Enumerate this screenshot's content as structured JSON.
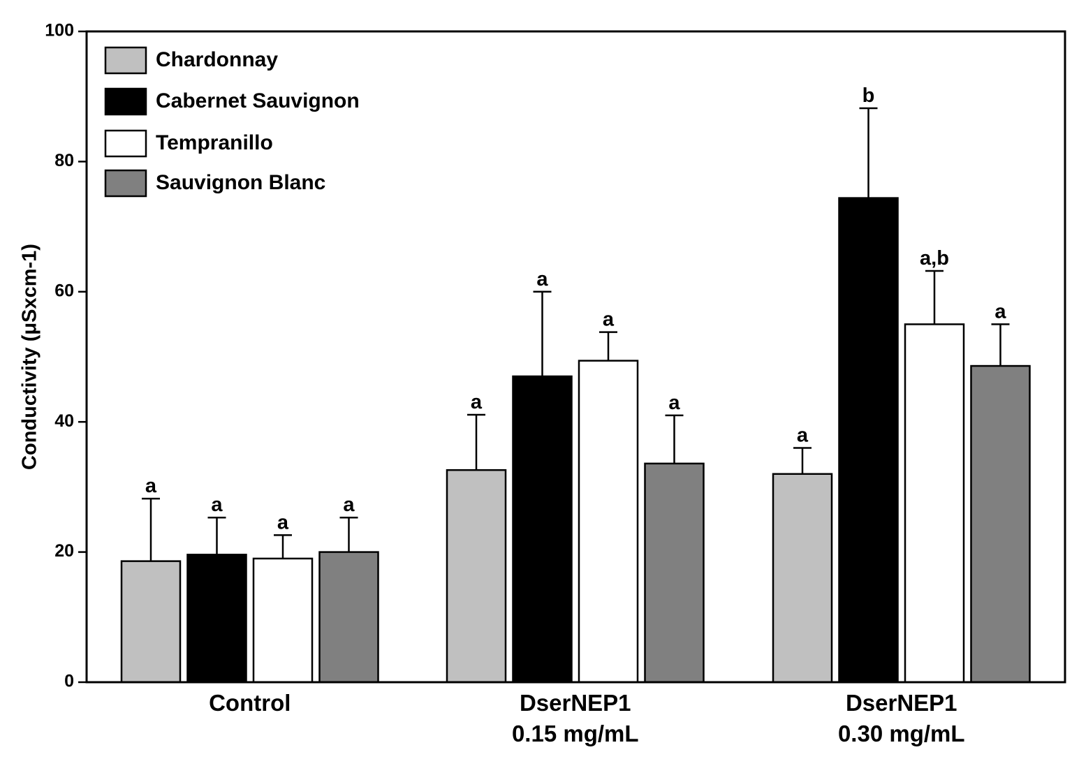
{
  "chart_data": {
    "type": "bar",
    "title": "",
    "xlabel": "",
    "ylabel": "Conductivity (μSxcm-1)",
    "ylim": [
      0,
      100
    ],
    "yticks": [
      0,
      20,
      40,
      60,
      80,
      100
    ],
    "ytick_labels": [
      "0",
      "20",
      "40",
      "60",
      "80",
      "100"
    ],
    "legend_position": "top-left",
    "categories": [
      {
        "line1": "Control",
        "line2": ""
      },
      {
        "line1": "DserNEP1",
        "line2": "0.15 mg/mL"
      },
      {
        "line1": "DserNEP1",
        "line2": "0.30 mg/mL"
      }
    ],
    "series": [
      {
        "name": "Chardonnay",
        "color": "#c0c0c0",
        "values": [
          18.6,
          32.6,
          32.0
        ],
        "errors": [
          9.6,
          8.5,
          4.0
        ],
        "labels": [
          "a",
          "a",
          "a"
        ]
      },
      {
        "name": "Cabernet Sauvignon",
        "color": "#000000",
        "values": [
          19.6,
          47.0,
          74.4
        ],
        "errors": [
          5.7,
          13.0,
          13.8
        ],
        "labels": [
          "a",
          "a",
          "b"
        ]
      },
      {
        "name": "Tempranillo",
        "color": "#ffffff",
        "values": [
          19.0,
          49.4,
          55.0
        ],
        "errors": [
          3.6,
          4.4,
          8.2
        ],
        "labels": [
          "a",
          "a",
          "a,b"
        ]
      },
      {
        "name": "Sauvignon Blanc",
        "color": "#808080",
        "values": [
          20.0,
          33.6,
          48.6
        ],
        "errors": [
          5.3,
          7.4,
          6.4
        ],
        "labels": [
          "a",
          "a",
          "a"
        ]
      }
    ]
  }
}
